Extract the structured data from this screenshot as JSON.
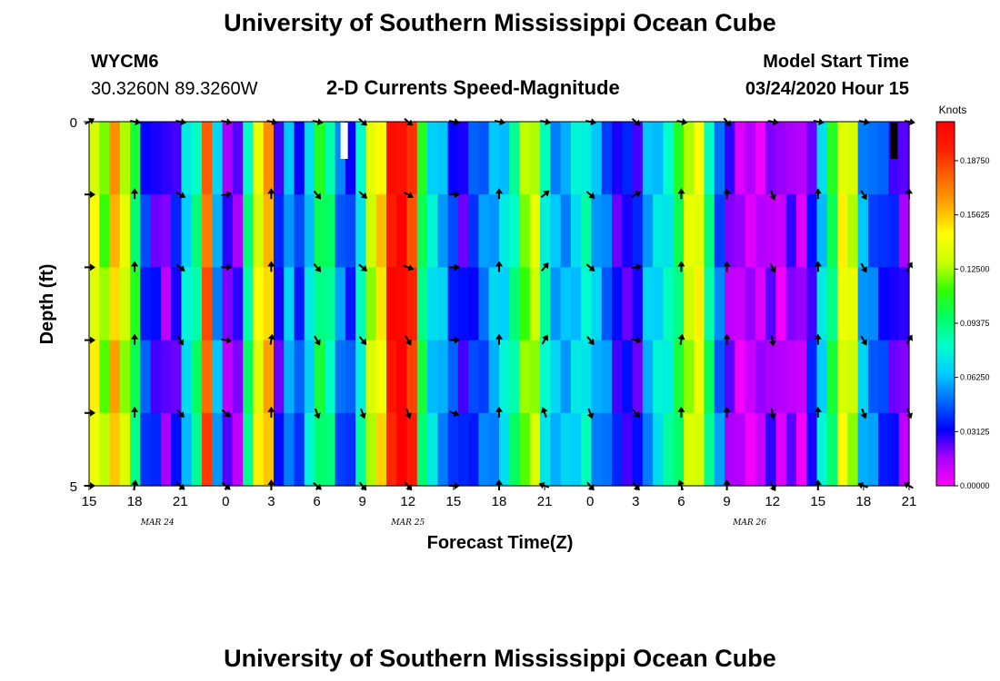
{
  "page": {
    "title_top": "University of Southern Mississippi Ocean Cube",
    "title_bottom": "University of Southern Mississippi Ocean Cube",
    "station_id": "WYCM6",
    "station_coords": "30.3260N 89.3260W",
    "model_start_label": "Model Start Time",
    "model_start_value": "03/24/2020 Hour 15"
  },
  "colors": {
    "scale": [
      "#ff00ff",
      "#aa00ff",
      "#0000ff",
      "#0066ff",
      "#00ccff",
      "#00ffcc",
      "#00ff66",
      "#33ff00",
      "#ccff00",
      "#ffff00",
      "#ffaa00",
      "#ff6600",
      "#ff2000",
      "#ff0000"
    ],
    "arrow": "#000000",
    "missing_white": "#ffffff",
    "missing_black": "#000000"
  },
  "chart_data": {
    "type": "heatmap",
    "title": "2-D Currents Speed-Magnitude",
    "xlabel": "Forecast Time(Z)",
    "ylabel": "Depth (ft)",
    "colorbar_label": "Knots",
    "vmin": 0.0,
    "vmax": 0.21,
    "colorbar_ticks": [
      "0.18750",
      "0.15625",
      "0.12500",
      "0.09375",
      "0.06250",
      "0.03125",
      "0.00000"
    ],
    "colorbar_tick_values": [
      0.1875,
      0.15625,
      0.125,
      0.09375,
      0.0625,
      0.03125,
      0.0
    ],
    "ylim": [
      0,
      5
    ],
    "ytick_labels": [
      "0",
      "5"
    ],
    "y_minor_ticks": [
      1,
      2,
      3,
      4
    ],
    "x_hours_range": [
      0,
      54
    ],
    "xtick_labels": [
      "15",
      "18",
      "21",
      "0",
      "3",
      "6",
      "9",
      "12",
      "15",
      "18",
      "21",
      "0",
      "3",
      "6",
      "9",
      "12",
      "15",
      "18",
      "21"
    ],
    "xtick_hours": [
      0,
      3,
      6,
      9,
      12,
      15,
      18,
      21,
      24,
      27,
      30,
      33,
      36,
      39,
      42,
      45,
      48,
      51,
      54
    ],
    "date_labels": [
      "MAR 24",
      "MAR 25",
      "MAR 26"
    ],
    "date_label_hours": [
      4.5,
      21,
      43.5
    ],
    "speed_columns_knots": [
      0.14,
      0.12,
      0.16,
      0.13,
      0.1,
      0.04,
      0.03,
      0.02,
      0.03,
      0.07,
      0.09,
      0.18,
      0.06,
      0.02,
      0.02,
      0.09,
      0.14,
      0.16,
      0.03,
      0.06,
      0.04,
      0.07,
      0.1,
      0.09,
      0.05,
      0.04,
      0.08,
      0.13,
      0.15,
      0.2,
      0.21,
      0.19,
      0.1,
      0.07,
      0.06,
      0.04,
      0.03,
      0.04,
      0.05,
      0.06,
      0.07,
      0.09,
      0.12,
      0.13,
      0.08,
      0.06,
      0.06,
      0.07,
      0.08,
      0.06,
      0.05,
      0.03,
      0.03,
      0.03,
      0.06,
      0.07,
      0.08,
      0.1,
      0.13,
      0.14,
      0.09,
      0.05,
      0.02,
      0.01,
      0.01,
      0.01,
      0.02,
      0.01,
      0.02,
      0.01,
      0.03,
      0.07,
      0.1,
      0.14,
      0.13,
      0.06,
      0.05,
      0.04,
      0.03,
      0.02
    ],
    "missing_cells": [
      {
        "hour": 16.8,
        "depth_row": 0,
        "kind": "white"
      },
      {
        "hour": 53.0,
        "depth_row": 0,
        "kind": "black"
      }
    ],
    "vector_rows_depth_ft": [
      0,
      1,
      2,
      3,
      4,
      5
    ],
    "vector_hours": [
      0,
      3,
      6,
      9,
      12,
      15,
      18,
      21,
      24,
      27,
      30,
      33,
      36,
      39,
      42,
      45,
      48,
      51,
      54
    ],
    "vector_directions_deg": [
      [
        60,
        100,
        100,
        100,
        100,
        100,
        130,
        130,
        100,
        100,
        100,
        100,
        130,
        100,
        140,
        100,
        100,
        100,
        100
      ],
      [
        90,
        0,
        120,
        80,
        0,
        140,
        130,
        120,
        90,
        0,
        50,
        130,
        60,
        0,
        0,
        160,
        0,
        150,
        0
      ],
      [
        90,
        0,
        130,
        90,
        0,
        140,
        130,
        110,
        90,
        0,
        40,
        130,
        80,
        0,
        0,
        150,
        0,
        150,
        30
      ],
      [
        90,
        0,
        150,
        100,
        10,
        150,
        140,
        150,
        90,
        0,
        30,
        140,
        100,
        10,
        0,
        170,
        0,
        150,
        30
      ],
      [
        90,
        0,
        140,
        130,
        0,
        160,
        160,
        160,
        110,
        0,
        340,
        160,
        140,
        0,
        0,
        170,
        0,
        160,
        160
      ],
      [
        90,
        10,
        130,
        130,
        0,
        130,
        140,
        140,
        90,
        0,
        290,
        140,
        140,
        340,
        0,
        150,
        0,
        290,
        300
      ]
    ]
  }
}
